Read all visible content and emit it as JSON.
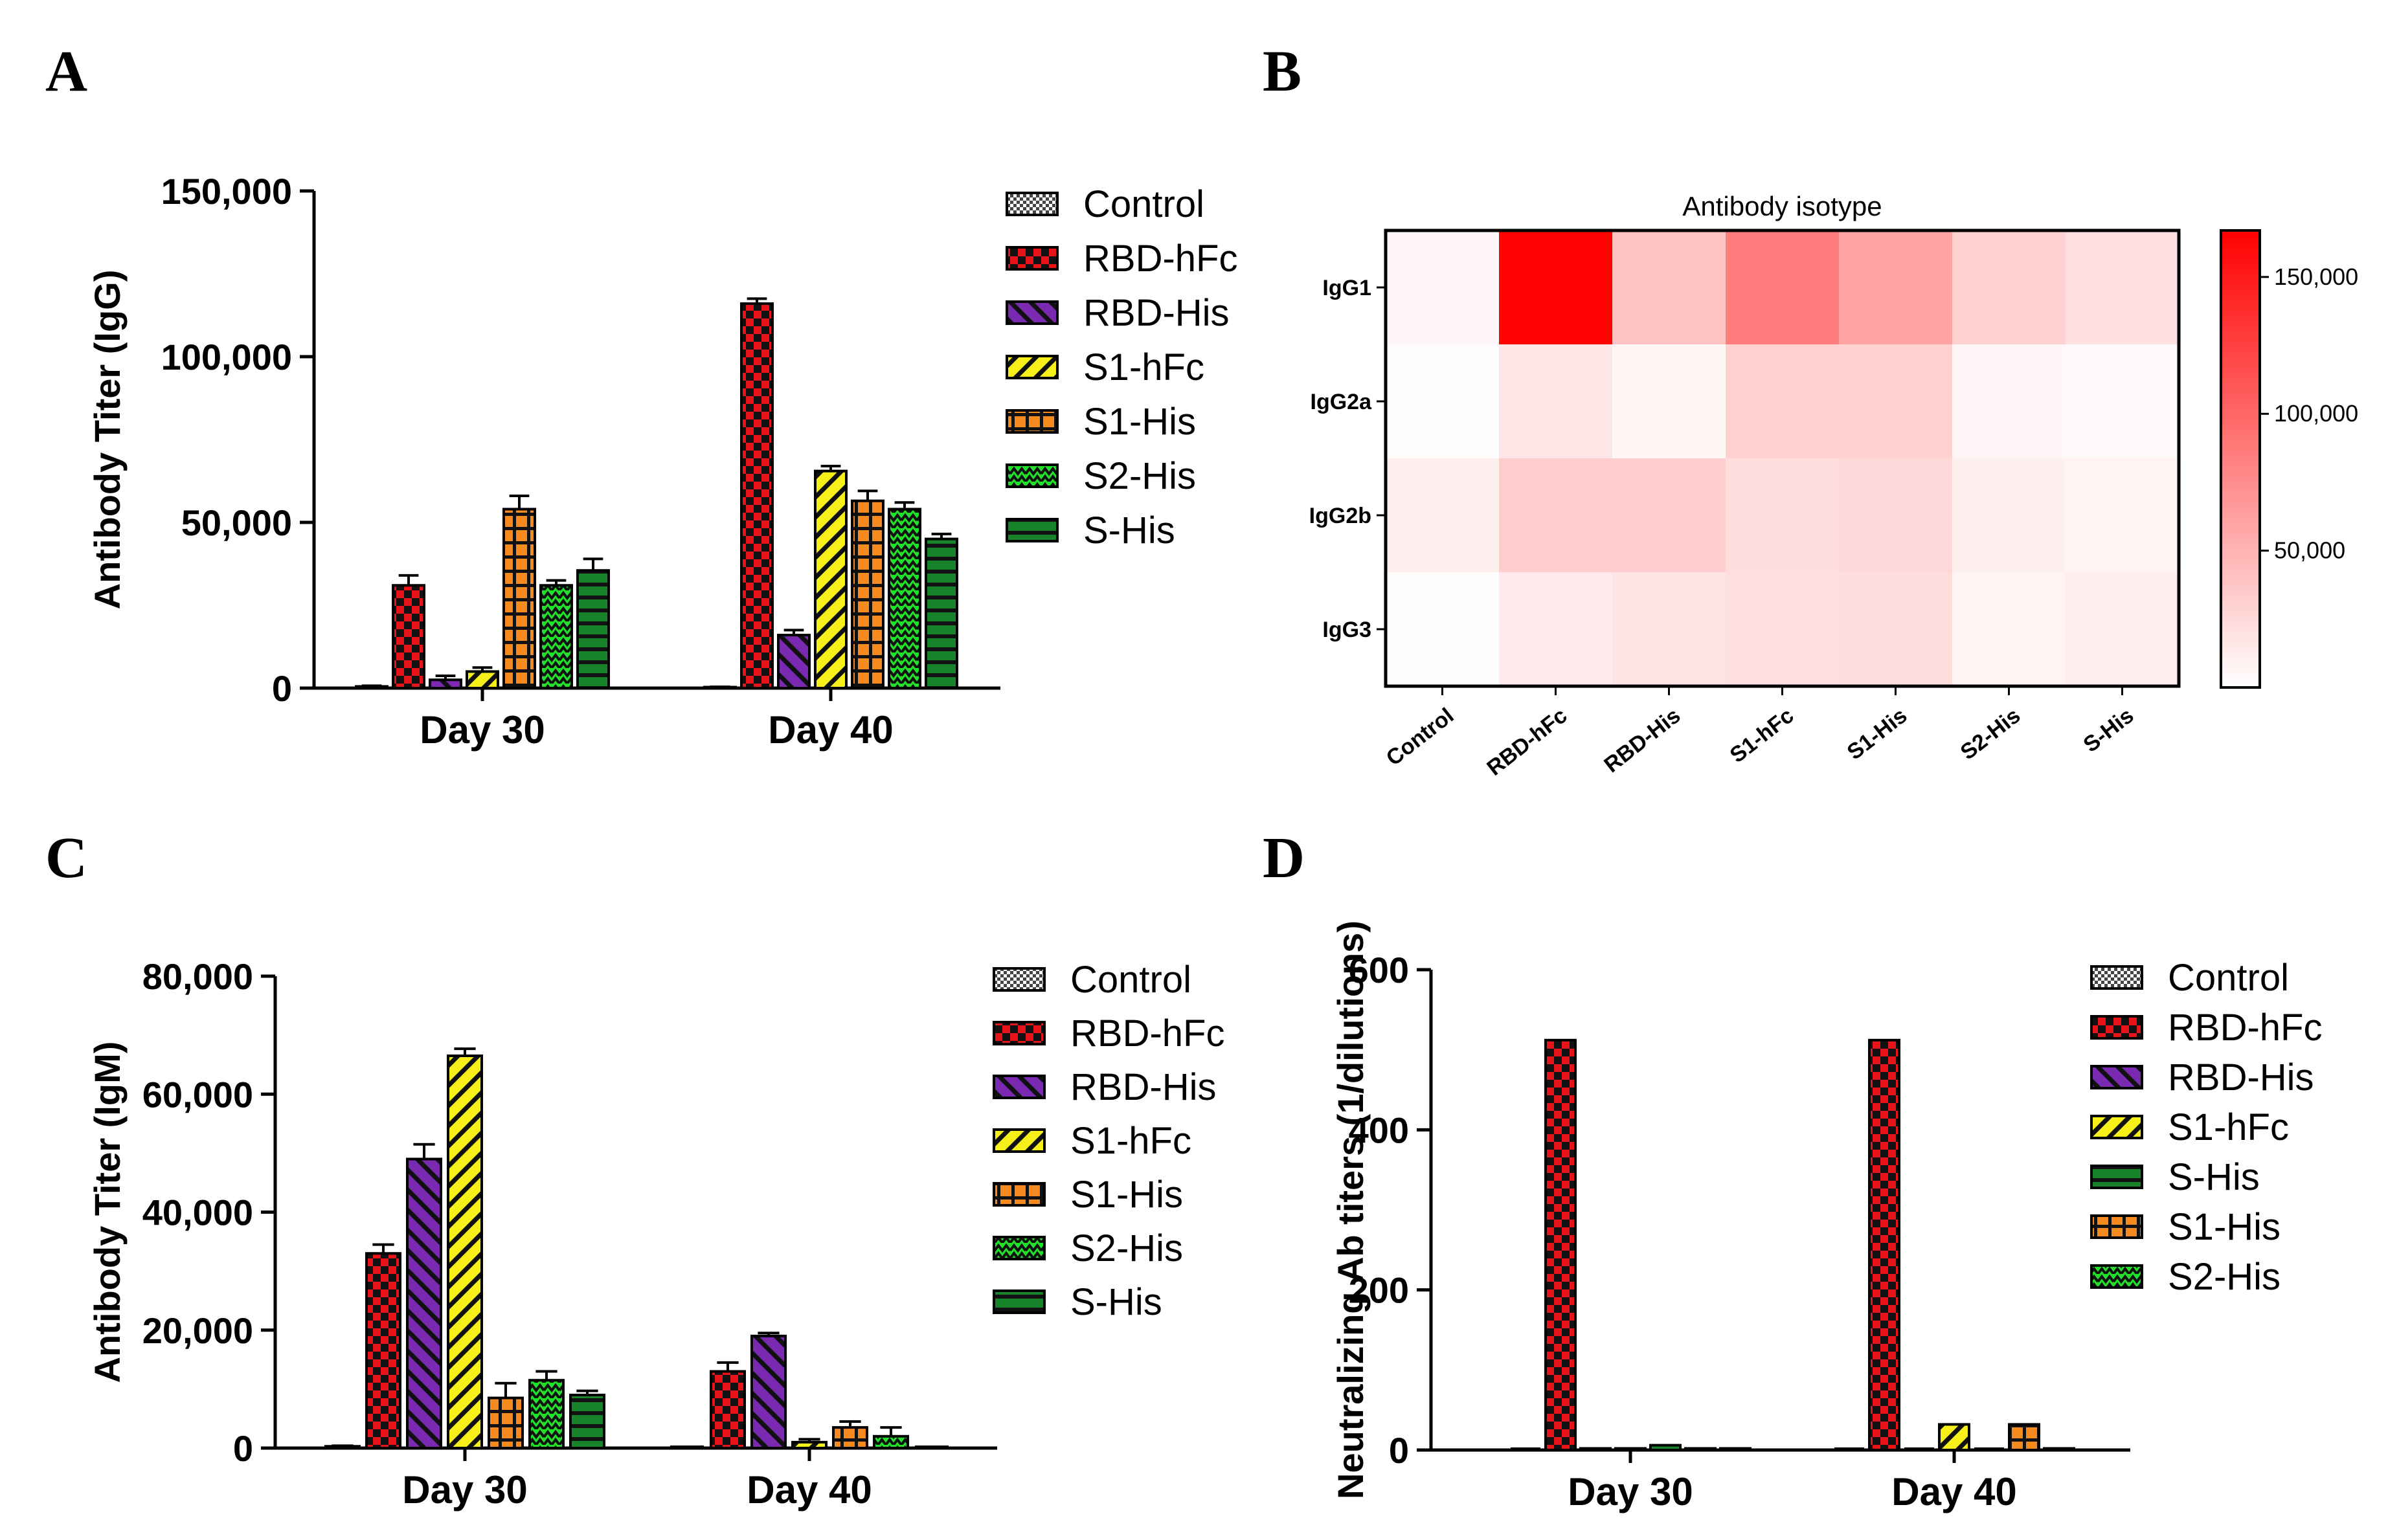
{
  "colors": {
    "Control": "#ffffff",
    "RBD-hFc": "#e8141a",
    "RBD-His": "#7a2ab0",
    "S1-hFc": "#f7ef1a",
    "S1-His": "#f58a1f",
    "S2-His": "#22e02a",
    "S-His": "#17832a"
  },
  "patterns": {
    "Control": "checker-small",
    "RBD-hFc": "checker-large",
    "RBD-His": "diag-right",
    "S1-hFc": "diag-left",
    "S1-His": "grid",
    "S2-His": "zigzag",
    "S-His": "horizontal"
  },
  "chart_data": [
    {
      "id": "A",
      "panel_label": "A",
      "type": "bar",
      "title": "",
      "xlabel": "",
      "ylabel": "Antibody Titer (IgG)",
      "categories": [
        "Day 30",
        "Day 40"
      ],
      "ylim": [
        0,
        150000
      ],
      "yticks": [
        0,
        50000,
        100000,
        150000
      ],
      "ytick_labels": [
        "0",
        "50,000",
        "100,000",
        "150,000"
      ],
      "series": [
        {
          "name": "Control",
          "values": [
            500,
            300
          ],
          "errors": [
            200,
            100
          ]
        },
        {
          "name": "RBD-hFc",
          "values": [
            31000,
            116000
          ],
          "errors": [
            3000,
            1500
          ]
        },
        {
          "name": "RBD-His",
          "values": [
            2500,
            16000
          ],
          "errors": [
            1200,
            1500
          ]
        },
        {
          "name": "S1-hFc",
          "values": [
            5000,
            65500
          ],
          "errors": [
            1200,
            1500
          ]
        },
        {
          "name": "S1-His",
          "values": [
            54000,
            56500
          ],
          "errors": [
            4000,
            3000
          ]
        },
        {
          "name": "S2-His",
          "values": [
            31000,
            54000
          ],
          "errors": [
            1500,
            2000
          ]
        },
        {
          "name": "S-His",
          "values": [
            35500,
            45000
          ],
          "errors": [
            3500,
            1500
          ]
        }
      ],
      "legend": [
        "Control",
        "RBD-hFc",
        "RBD-His",
        "S1-hFc",
        "S1-His",
        "S2-His",
        "S-His"
      ],
      "legend_position": "right"
    },
    {
      "id": "B",
      "panel_label": "B",
      "type": "heatmap",
      "title": "Antibody isotype",
      "rows": [
        "IgG1",
        "IgG2a",
        "IgG2b",
        "IgG3"
      ],
      "columns": [
        "Control",
        "RBD-hFc",
        "RBD-His",
        "S1-hFc",
        "S1-His",
        "S2-His",
        "S-His"
      ],
      "values": [
        [
          5000,
          165000,
          40000,
          85000,
          60000,
          30000,
          20000
        ],
        [
          1000,
          16000,
          6000,
          30000,
          30000,
          5000,
          3000
        ],
        [
          10000,
          33000,
          33000,
          22000,
          25000,
          10000,
          8000
        ],
        [
          1000,
          13000,
          18000,
          20000,
          22000,
          8000,
          12000
        ]
      ],
      "colorbar": {
        "range": [
          0,
          167000
        ],
        "ticks": [
          50000,
          100000,
          150000
        ],
        "tick_labels": [
          "50,000",
          "100,000",
          "150,000"
        ],
        "low_color": "#ffffff",
        "high_color": "#ff0000"
      }
    },
    {
      "id": "C",
      "panel_label": "C",
      "type": "bar",
      "title": "",
      "xlabel": "",
      "ylabel": "Antibody Titer (IgM)",
      "categories": [
        "Day 30",
        "Day 40"
      ],
      "ylim": [
        0,
        80000
      ],
      "yticks": [
        0,
        20000,
        40000,
        60000,
        80000
      ],
      "ytick_labels": [
        "0",
        "20,000",
        "40,000",
        "60,000",
        "80,000"
      ],
      "series": [
        {
          "name": "Control",
          "values": [
            300,
            0
          ],
          "errors": [
            100,
            0
          ]
        },
        {
          "name": "RBD-hFc",
          "values": [
            33000,
            13000
          ],
          "errors": [
            1500,
            1500
          ]
        },
        {
          "name": "RBD-His",
          "values": [
            49000,
            19000
          ],
          "errors": [
            2500,
            500
          ]
        },
        {
          "name": "S1-hFc",
          "values": [
            66500,
            1000
          ],
          "errors": [
            1200,
            500
          ]
        },
        {
          "name": "S1-His",
          "values": [
            8500,
            3500
          ],
          "errors": [
            2500,
            1000
          ]
        },
        {
          "name": "S2-His",
          "values": [
            11500,
            2000
          ],
          "errors": [
            1500,
            1500
          ]
        },
        {
          "name": "S-His",
          "values": [
            9000,
            0
          ],
          "errors": [
            700,
            0
          ]
        }
      ],
      "legend": [
        "Control",
        "RBD-hFc",
        "RBD-His",
        "S1-hFc",
        "S1-His",
        "S2-His",
        "S-His"
      ],
      "legend_position": "right"
    },
    {
      "id": "D",
      "panel_label": "D",
      "type": "bar",
      "title": "",
      "xlabel": "",
      "ylabel": "Neutralizing Ab titers (1/dilutions)",
      "categories": [
        "Day 30",
        "Day 40"
      ],
      "ylim": [
        0,
        600
      ],
      "yticks": [
        0,
        200,
        400,
        600
      ],
      "ytick_labels": [
        "0",
        "200",
        "400",
        "600"
      ],
      "series": [
        {
          "name": "Control",
          "values": [
            0,
            0
          ],
          "errors": [
            0,
            0
          ]
        },
        {
          "name": "RBD-hFc",
          "values": [
            512,
            512
          ],
          "errors": [
            0,
            0
          ]
        },
        {
          "name": "RBD-His",
          "values": [
            2,
            0
          ],
          "errors": [
            0,
            0
          ]
        },
        {
          "name": "S1-hFc",
          "values": [
            2,
            32
          ],
          "errors": [
            0,
            0
          ]
        },
        {
          "name": "S-His",
          "values": [
            6,
            0
          ],
          "errors": [
            0,
            0
          ]
        },
        {
          "name": "S1-His",
          "values": [
            2,
            32
          ],
          "errors": [
            0,
            0
          ]
        },
        {
          "name": "S2-His",
          "values": [
            2,
            2
          ],
          "errors": [
            0,
            0
          ]
        }
      ],
      "legend": [
        "Control",
        "RBD-hFc",
        "RBD-His",
        "S1-hFc",
        "S-His",
        "S1-His",
        "S2-His"
      ],
      "legend_position": "right"
    }
  ]
}
